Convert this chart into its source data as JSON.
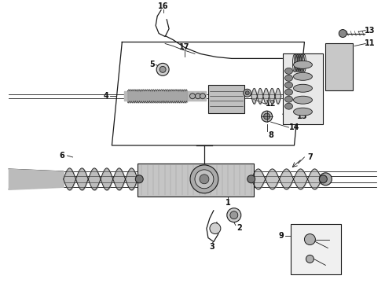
{
  "background_color": "#ffffff",
  "fig_width": 4.9,
  "fig_height": 3.6,
  "dpi": 100,
  "line_color": "#1a1a1a",
  "label_fontsize": 7.0,
  "label_fontsize_sm": 6.5,
  "label_color": "#111111"
}
